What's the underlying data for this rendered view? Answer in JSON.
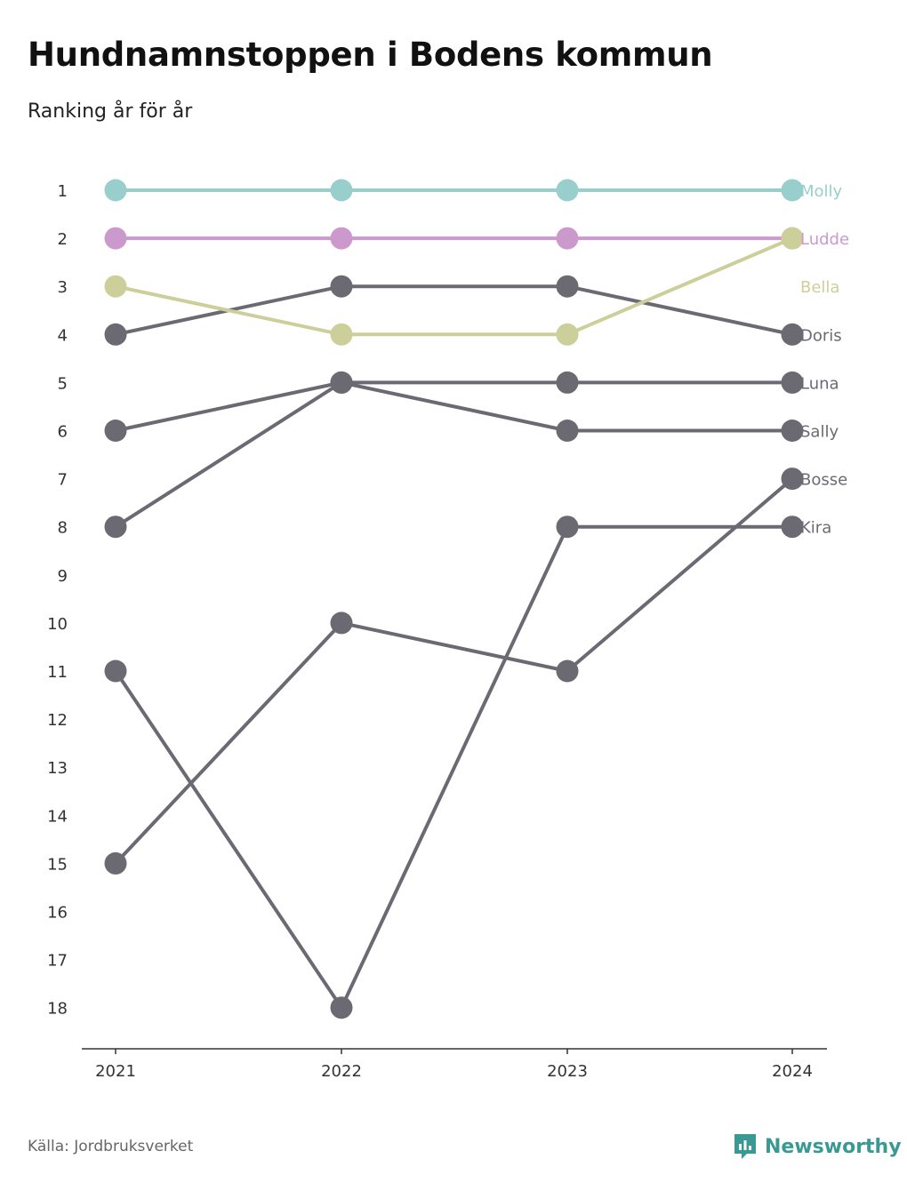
{
  "title": "Hundnamnstoppen i Bodens kommun",
  "subtitle": "Ranking år för år",
  "source": "Källa: Jordbruksverket",
  "brand": {
    "name": "Newsworthy",
    "icon": "newsworthy-logo-icon",
    "color": "#3a9a93"
  },
  "colors": {
    "axis": "#333333",
    "tick_text": "#333333"
  },
  "chart_data": {
    "type": "line",
    "x": [
      "2021",
      "2022",
      "2023",
      "2024"
    ],
    "y_ticks": [
      "1",
      "2",
      "3",
      "4",
      "5",
      "6",
      "7",
      "8",
      "9",
      "10",
      "11",
      "12",
      "13",
      "14",
      "15",
      "16",
      "17",
      "18"
    ],
    "ylim": [
      1,
      18
    ],
    "y_inverted": true,
    "legend": "labels at end of lines",
    "series": [
      {
        "name": "Molly",
        "values": [
          1,
          1,
          1,
          1
        ],
        "color": "#98cfcc"
      },
      {
        "name": "Ludde",
        "values": [
          2,
          2,
          2,
          2
        ],
        "color": "#cc99cc"
      },
      {
        "name": "Bella",
        "values": [
          3,
          4,
          4,
          2
        ],
        "color": "#cdcf9b"
      },
      {
        "name": "Doris",
        "values": [
          4,
          3,
          3,
          4
        ],
        "color": "#6b6a72"
      },
      {
        "name": "Luna",
        "values": [
          8,
          5,
          5,
          5
        ],
        "color": "#6b6a72"
      },
      {
        "name": "Sally",
        "values": [
          6,
          5,
          6,
          6
        ],
        "color": "#6b6a72"
      },
      {
        "name": "Bosse",
        "values": [
          15,
          10,
          11,
          7
        ],
        "color": "#6b6a72"
      },
      {
        "name": "Kira",
        "values": [
          11,
          18,
          8,
          8
        ],
        "color": "#6b6a72"
      }
    ]
  }
}
